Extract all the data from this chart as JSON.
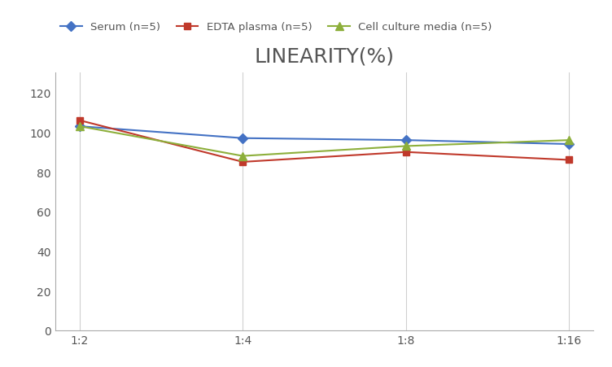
{
  "title": "LINEARITY(%)",
  "x_labels": [
    "1:2",
    "1:4",
    "1:8",
    "1:16"
  ],
  "series": [
    {
      "label": "Serum (n=5)",
      "values": [
        103,
        97,
        96,
        94
      ],
      "color": "#4472C4",
      "marker": "D",
      "marker_size": 6,
      "linewidth": 1.5
    },
    {
      "label": "EDTA plasma (n=5)",
      "values": [
        106,
        85,
        90,
        86
      ],
      "color": "#C0392B",
      "marker": "s",
      "marker_size": 6,
      "linewidth": 1.5
    },
    {
      "label": "Cell culture media (n=5)",
      "values": [
        103,
        88,
        93,
        96
      ],
      "color": "#8DAF3B",
      "marker": "^",
      "marker_size": 7,
      "linewidth": 1.5
    }
  ],
  "ylim": [
    0,
    130
  ],
  "yticks": [
    0,
    20,
    40,
    60,
    80,
    100,
    120
  ],
  "background_color": "#ffffff",
  "grid_color": "#d0d0d0",
  "title_fontsize": 18,
  "title_fontweight": "normal",
  "title_color": "#555555",
  "legend_fontsize": 9.5,
  "tick_fontsize": 10,
  "tick_color": "#555555"
}
